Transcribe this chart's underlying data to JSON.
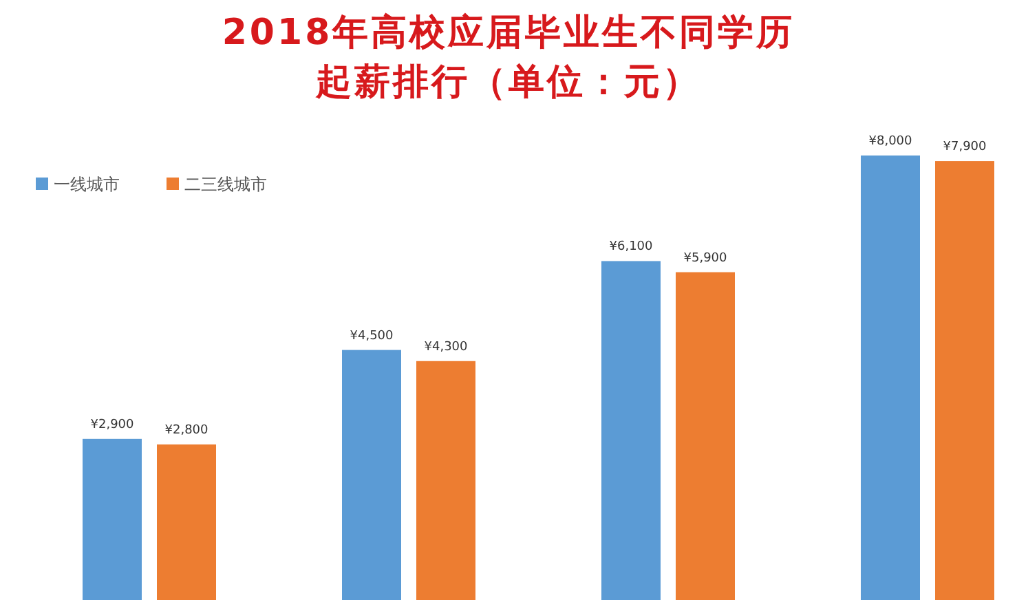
{
  "chart_data": {
    "type": "bar",
    "title": "2018年高校应届毕业生不同学历",
    "subtitle": "起薪排行（单位：元）",
    "categories": [
      null,
      null,
      null,
      null
    ],
    "series": [
      {
        "name": "一线城市",
        "color": "#5b9bd5",
        "values": [
          2900,
          4500,
          6100,
          8000
        ],
        "value_labels": [
          "¥2,900",
          "¥4,500",
          "¥6,100",
          "¥8,000"
        ]
      },
      {
        "name": "二三线城市",
        "color": "#ed7d31",
        "values": [
          2800,
          4300,
          5900,
          7900
        ],
        "value_labels": [
          "¥2,800",
          "¥4,300",
          "¥5,900",
          "¥7,900"
        ]
      }
    ],
    "legend": "top left"
  }
}
